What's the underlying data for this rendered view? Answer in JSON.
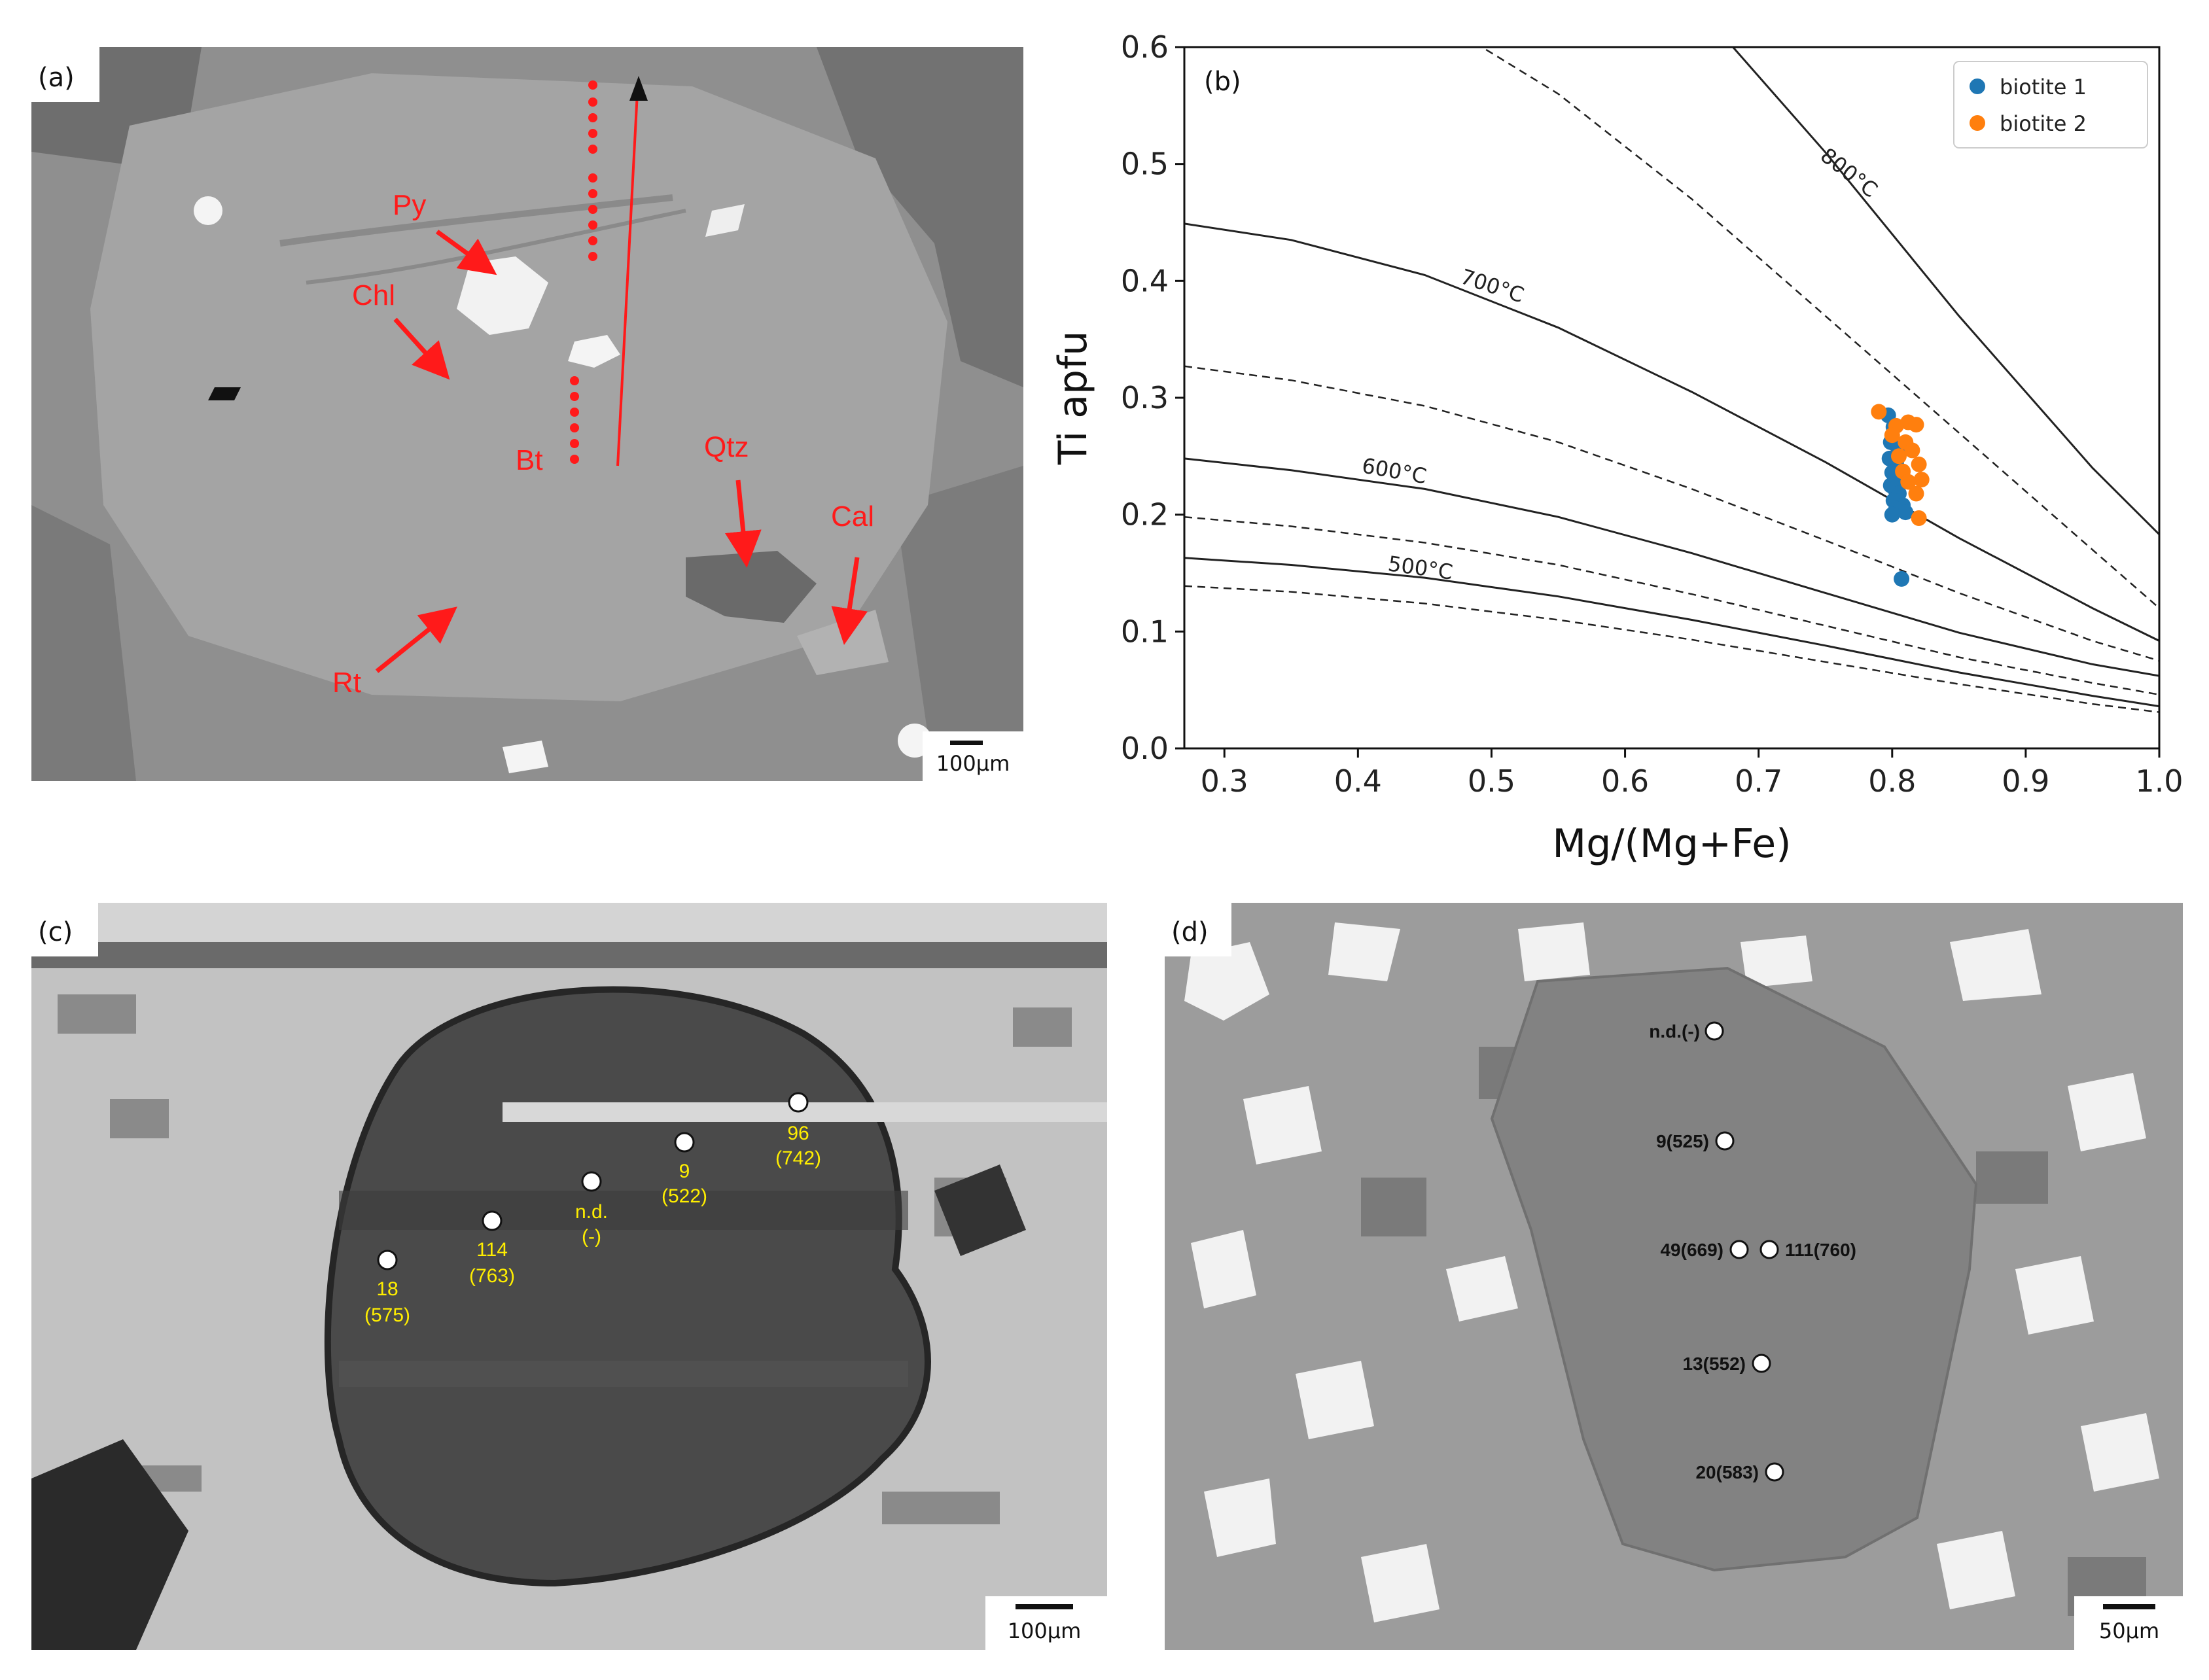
{
  "panel_a": {
    "label": "(a)",
    "scale_bar": "100µm",
    "minerals": {
      "py": "Py",
      "chl": "Chl",
      "bt": "Bt",
      "qtz": "Qtz",
      "cal": "Cal",
      "rt": "Rt"
    },
    "annotation_color": "#ff1a1a"
  },
  "panel_b": {
    "label": "(b)",
    "isotherm_labels": {
      "t800": "800°C",
      "t700": "700°C",
      "t600": "600°C",
      "t500": "500°C"
    }
  },
  "chart_data": {
    "type": "scatter",
    "xlabel": "Mg/(Mg+Fe)",
    "ylabel": "Ti apfu",
    "xlim": [
      0.27,
      1.0
    ],
    "ylim": [
      0.0,
      0.6
    ],
    "xticks": [
      "0.3",
      "0.4",
      "0.5",
      "0.6",
      "0.7",
      "0.8",
      "0.9",
      "1.0"
    ],
    "yticks": [
      "0.0",
      "0.1",
      "0.2",
      "0.3",
      "0.4",
      "0.5",
      "0.6"
    ],
    "grid": false,
    "legend_position": "top-right",
    "series": [
      {
        "name": "biotite 1",
        "color": "#1f77b4",
        "x": [
          0.797,
          0.801,
          0.799,
          0.804,
          0.798,
          0.803,
          0.8,
          0.806,
          0.799,
          0.802,
          0.805,
          0.801,
          0.808,
          0.803,
          0.81,
          0.8,
          0.807
        ],
        "y": [
          0.285,
          0.275,
          0.262,
          0.258,
          0.248,
          0.244,
          0.236,
          0.232,
          0.225,
          0.222,
          0.218,
          0.212,
          0.208,
          0.205,
          0.202,
          0.2,
          0.145
        ]
      },
      {
        "name": "biotite 2",
        "color": "#ff7f0e",
        "x": [
          0.79,
          0.812,
          0.803,
          0.818,
          0.8,
          0.81,
          0.815,
          0.805,
          0.82,
          0.808,
          0.822,
          0.812,
          0.818,
          0.82
        ],
        "y": [
          0.288,
          0.279,
          0.276,
          0.277,
          0.268,
          0.262,
          0.255,
          0.25,
          0.243,
          0.237,
          0.23,
          0.228,
          0.218,
          0.197
        ]
      }
    ],
    "isotherms": [
      {
        "label": "800°C",
        "style": "solid",
        "x": [
          0.27,
          0.35,
          0.45,
          0.55,
          0.65,
          0.75,
          0.85,
          0.95,
          1.0
        ],
        "y": [
          0.95,
          0.9,
          0.84,
          0.75,
          0.64,
          0.51,
          0.37,
          0.24,
          0.183
        ]
      },
      {
        "label": "",
        "style": "dashed",
        "x": [
          0.27,
          0.35,
          0.45,
          0.55,
          0.65,
          0.75,
          0.85,
          0.95,
          1.0
        ],
        "y": [
          0.7,
          0.68,
          0.63,
          0.56,
          0.47,
          0.37,
          0.27,
          0.17,
          0.12
        ]
      },
      {
        "label": "700°C",
        "style": "solid",
        "x": [
          0.27,
          0.35,
          0.45,
          0.55,
          0.65,
          0.75,
          0.85,
          0.95,
          1.0
        ],
        "y": [
          0.449,
          0.435,
          0.405,
          0.36,
          0.305,
          0.245,
          0.18,
          0.12,
          0.092
        ]
      },
      {
        "label": "",
        "style": "dashed",
        "x": [
          0.27,
          0.35,
          0.45,
          0.55,
          0.65,
          0.75,
          0.85,
          0.95,
          1.0
        ],
        "y": [
          0.327,
          0.315,
          0.293,
          0.262,
          0.222,
          0.178,
          0.133,
          0.092,
          0.075
        ]
      },
      {
        "label": "600°C",
        "style": "solid",
        "x": [
          0.27,
          0.35,
          0.45,
          0.55,
          0.65,
          0.75,
          0.85,
          0.95,
          1.0
        ],
        "y": [
          0.248,
          0.238,
          0.222,
          0.198,
          0.167,
          0.133,
          0.099,
          0.072,
          0.062
        ]
      },
      {
        "label": "",
        "style": "dashed",
        "x": [
          0.27,
          0.35,
          0.45,
          0.55,
          0.65,
          0.75,
          0.85,
          0.95,
          1.0
        ],
        "y": [
          0.198,
          0.19,
          0.176,
          0.157,
          0.132,
          0.105,
          0.078,
          0.056,
          0.046
        ]
      },
      {
        "label": "500°C",
        "style": "solid",
        "x": [
          0.27,
          0.35,
          0.45,
          0.55,
          0.65,
          0.75,
          0.85,
          0.95,
          1.0
        ],
        "y": [
          0.163,
          0.157,
          0.146,
          0.13,
          0.11,
          0.088,
          0.065,
          0.045,
          0.036
        ]
      },
      {
        "label": "",
        "style": "dashed",
        "x": [
          0.27,
          0.35,
          0.45,
          0.55,
          0.65,
          0.75,
          0.85,
          0.95,
          1.0
        ],
        "y": [
          0.139,
          0.134,
          0.124,
          0.11,
          0.093,
          0.074,
          0.055,
          0.038,
          0.031
        ]
      }
    ]
  },
  "panel_c": {
    "label": "(c)",
    "scale_bar": "100µm",
    "points": [
      {
        "id": "96",
        "value": "(742)"
      },
      {
        "id": "9",
        "value": "(522)"
      },
      {
        "id": "n.d.",
        "value": "(-)"
      },
      {
        "id": "114",
        "value": "(763)"
      },
      {
        "id": "18",
        "value": "(575)"
      }
    ]
  },
  "panel_d": {
    "label": "(d)",
    "scale_bar": "50µm",
    "points": [
      "n.d.(-)",
      "9(525)",
      "49(669)",
      "111(760)",
      "13(552)",
      "20(583)"
    ]
  }
}
